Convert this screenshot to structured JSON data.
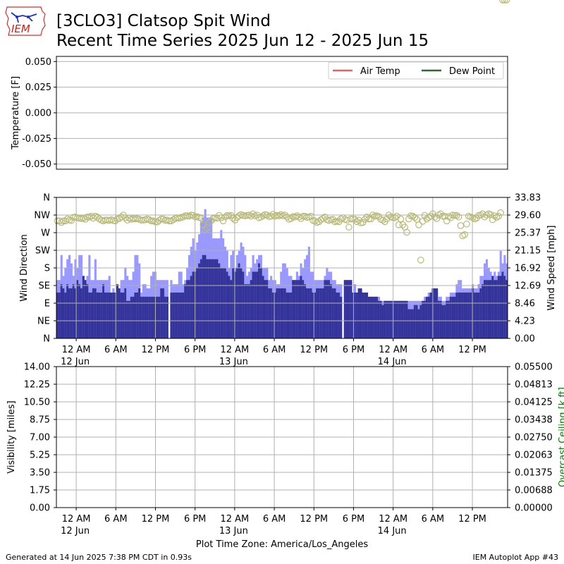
{
  "header": {
    "logo_text": "IEM",
    "title_line1": "[3CLO3] Clatsop Spit Wind",
    "title_line2": "Recent Time Series 2025 Jun 12 - 2025 Jun 15"
  },
  "footer": {
    "generated": "Generated at 14 Jun 2025 7:38 PM CDT in 0.93s",
    "app": "IEM Autoplot App #43",
    "timezone": "Plot Time Zone: America/Los_Angeles"
  },
  "colors": {
    "air_temp": "#dd6666",
    "dew_point": "#336633",
    "gust_bar": "#9999ff",
    "speed_bar": "#333399",
    "direction_marker": "#b9b97a",
    "ceiling_label": "#008000",
    "grid": "#b0b0b0"
  },
  "chart_data": [
    {
      "type": "line",
      "name": "temperature-panel",
      "ylabel": "Temperature [F]",
      "ylim": [
        -0.055,
        0.055
      ],
      "yticks": [
        "0.050",
        "0.025",
        "0.000",
        "-0.025",
        "-0.050"
      ],
      "ytick_values": [
        0.05,
        0.025,
        0.0,
        -0.025,
        -0.05
      ],
      "grid": true,
      "legend_position": "top-right",
      "series": [
        {
          "name": "Air Temp",
          "values": []
        },
        {
          "name": "Dew Point",
          "values": []
        }
      ]
    },
    {
      "type": "bar",
      "name": "wind-panel",
      "x_start": "2025-06-11T21:00",
      "x_end": "2025-06-14T17:20",
      "interval_minutes": 20,
      "ylabel_left": "Wind Direction",
      "ylabel_right": "Wind Speed [mph]",
      "direction_ticks": [
        "N",
        "NE",
        "E",
        "SE",
        "S",
        "SW",
        "W",
        "NW",
        "N"
      ],
      "direction_tick_values": [
        0,
        45,
        90,
        135,
        180,
        225,
        270,
        315,
        360
      ],
      "speed_ticks": [
        "0.00",
        "4.23",
        "8.46",
        "12.69",
        "16.92",
        "21.15",
        "25.37",
        "29.60",
        "33.83"
      ],
      "speed_tick_values": [
        0,
        4.23,
        8.46,
        12.69,
        16.92,
        21.15,
        25.37,
        29.6,
        33.83
      ],
      "speed_ylim": [
        0,
        33.83
      ],
      "direction_ylim": [
        0,
        360
      ],
      "xtick_labels": [
        {
          "time": "2025-06-12T00:00",
          "label": "12 AM",
          "sublabel": "12 Jun"
        },
        {
          "time": "2025-06-12T06:00",
          "label": "6 AM",
          "sublabel": ""
        },
        {
          "time": "2025-06-12T12:00",
          "label": "12 PM",
          "sublabel": ""
        },
        {
          "time": "2025-06-12T18:00",
          "label": "6 PM",
          "sublabel": ""
        },
        {
          "time": "2025-06-13T00:00",
          "label": "12 AM",
          "sublabel": "13 Jun"
        },
        {
          "time": "2025-06-13T06:00",
          "label": "6 AM",
          "sublabel": ""
        },
        {
          "time": "2025-06-13T12:00",
          "label": "12 PM",
          "sublabel": ""
        },
        {
          "time": "2025-06-13T18:00",
          "label": "6 PM",
          "sublabel": ""
        },
        {
          "time": "2025-06-14T00:00",
          "label": "12 AM",
          "sublabel": "14 Jun"
        },
        {
          "time": "2025-06-14T06:00",
          "label": "6 AM",
          "sublabel": ""
        },
        {
          "time": "2025-06-14T12:00",
          "label": "12 PM",
          "sublabel": ""
        }
      ],
      "speed_mph": [
        11,
        11,
        13,
        12,
        11,
        13,
        12,
        12,
        13,
        12,
        14,
        13,
        12,
        15,
        14,
        13,
        11,
        11,
        12,
        12,
        11,
        11,
        11,
        13,
        11,
        11,
        11,
        11,
        11,
        11,
        13,
        12,
        11,
        11,
        12,
        9,
        9,
        10,
        10,
        11,
        11,
        12,
        10,
        10,
        10,
        10,
        10,
        10,
        10,
        10,
        10,
        10,
        12,
        12,
        10,
        10,
        0,
        11,
        11,
        11,
        11,
        11,
        11,
        11,
        13,
        14,
        14,
        15,
        16,
        16,
        17,
        18,
        19,
        20,
        20,
        19,
        19,
        19,
        19,
        19,
        19,
        18,
        17,
        17,
        17,
        16,
        15,
        14,
        17,
        16,
        17,
        18,
        17,
        16,
        13,
        13,
        13,
        14,
        16,
        16,
        16,
        18,
        17,
        15,
        14,
        14,
        12,
        12,
        11,
        11,
        12,
        12,
        12,
        12,
        12,
        11,
        11,
        11,
        14,
        14,
        14,
        14,
        15,
        14,
        13,
        12,
        12,
        12,
        11,
        11,
        12,
        12,
        12,
        12,
        14,
        14,
        14,
        13,
        12,
        12,
        11,
        11,
        10,
        0,
        14,
        14,
        14,
        14,
        11,
        11,
        11,
        12,
        12,
        11,
        11,
        11,
        10,
        10,
        10,
        10,
        10,
        9,
        9,
        8,
        9,
        9,
        9,
        9,
        9,
        9,
        9,
        9,
        9,
        9,
        9,
        9,
        7,
        7,
        7,
        8,
        8,
        7,
        8,
        9,
        9,
        10,
        10,
        11,
        12,
        12,
        12,
        9,
        9,
        8,
        8,
        9,
        9,
        10,
        10,
        10,
        11,
        11,
        11,
        11,
        11,
        11,
        11,
        11,
        12,
        11,
        11,
        11,
        12,
        13,
        14,
        14,
        14,
        14,
        15,
        14,
        14,
        15,
        15,
        16,
        15,
        14
      ],
      "gust_mph": [
        14,
        14,
        20,
        15,
        17,
        19,
        20,
        18,
        15,
        19,
        17,
        20,
        20,
        14,
        14,
        15,
        20,
        14,
        14,
        19,
        14,
        14,
        14,
        14,
        14,
        14,
        15,
        11,
        12,
        11,
        11,
        12,
        14,
        14,
        17,
        15,
        14,
        14,
        16,
        20,
        20,
        18,
        11,
        13,
        13,
        12,
        12,
        15,
        16,
        16,
        14,
        14,
        14,
        14,
        14,
        14,
        0,
        14,
        13,
        13,
        13,
        16,
        16,
        13,
        14,
        17,
        20,
        22,
        24,
        21,
        23,
        25,
        28,
        29,
        31,
        29,
        29,
        29,
        24,
        24,
        24,
        24,
        26,
        24,
        22,
        21,
        17,
        20,
        21,
        17,
        20,
        21,
        23,
        22,
        20,
        15,
        16,
        17,
        20,
        18,
        19,
        20,
        20,
        17,
        17,
        17,
        14,
        15,
        14,
        14,
        13,
        13,
        16,
        18,
        18,
        17,
        15,
        15,
        14,
        14,
        16,
        15,
        18,
        17,
        19,
        20,
        22,
        16,
        16,
        14,
        14,
        14,
        14,
        14,
        15,
        17,
        16,
        16,
        14,
        14,
        13,
        13,
        13,
        0,
        14,
        14,
        14,
        14,
        11,
        13,
        11,
        12,
        10,
        10,
        11,
        10,
        10,
        10,
        10,
        10,
        10,
        10,
        9,
        9,
        9,
        9,
        9,
        9,
        9,
        9,
        9,
        9,
        9,
        9,
        9,
        9,
        9,
        9,
        9,
        9,
        9,
        9,
        9,
        9,
        10,
        10,
        11,
        11,
        11,
        11,
        11,
        10,
        10,
        9,
        9,
        10,
        10,
        11,
        11,
        11,
        13,
        14,
        14,
        12,
        12,
        12,
        12,
        12,
        13,
        12,
        12,
        13,
        15,
        15,
        18,
        19,
        17,
        16,
        15,
        16,
        15,
        16,
        21,
        18,
        20,
        18
      ],
      "direction_deg": [
        300,
        300,
        296,
        300,
        300,
        305,
        302,
        301,
        309,
        310,
        308,
        307,
        306,
        307,
        304,
        310,
        310,
        312,
        307,
        312,
        310,
        305,
        302,
        300,
        302,
        302,
        301,
        303,
        301,
        300,
        305,
        306,
        310,
        315,
        308,
        302,
        307,
        304,
        306,
        305,
        306,
        304,
        302,
        302,
        303,
        305,
        303,
        300,
        300,
        298,
        297,
        301,
        305,
        305,
        301,
        302,
        300,
        300,
        303,
        306,
        308,
        307,
        309,
        310,
        313,
        313,
        312,
        315,
        314,
        310,
        311,
        309,
        307,
        290,
        278,
        282,
        296,
        300,
        306,
        308,
        307,
        314,
        308,
        300,
        310,
        314,
        313,
        314,
        307,
        302,
        309,
        313,
        316,
        314,
        313,
        314,
        315,
        312,
        318,
        313,
        315,
        308,
        310,
        313,
        316,
        315,
        311,
        312,
        317,
        312,
        314,
        313,
        316,
        313,
        315,
        310,
        304,
        306,
        311,
        310,
        313,
        310,
        306,
        312,
        312,
        309,
        310,
        312,
        301,
        300,
        296,
        298,
        303,
        306,
        310,
        303,
        301,
        303,
        304,
        298,
        299,
        298,
        305,
        308,
        304,
        302,
        284,
        305,
        305,
        304,
        298,
        302,
        295,
        296,
        304,
        310,
        305,
        305,
        315,
        312,
        313,
        311,
        304,
        302,
        298,
        305,
        315,
        310,
        309,
        308,
        312,
        290,
        305,
        290,
        284,
        271,
        305,
        313,
        312,
        309,
        304,
        290,
        200,
        299,
        314,
        305,
        309,
        312,
        318,
        310,
        306,
        315,
        318,
        312,
        312,
        300,
        311,
        308,
        315,
        314,
        314,
        310,
        288,
        262,
        265,
        292,
        312,
        310,
        308,
        305,
        307,
        314,
        315,
        318,
        310,
        315,
        318,
        316,
        303,
        313,
        309,
        312,
        321
      ],
      "series": [
        {
          "name": "Gust",
          "values_key": "gust_mph"
        },
        {
          "name": "Speed",
          "values_key": "speed_mph"
        },
        {
          "name": "Direction",
          "values_key": "direction_deg"
        }
      ]
    },
    {
      "type": "line",
      "name": "visibility-panel",
      "ylabel_left": "Visibility [miles]",
      "ylabel_right": "Overcast Ceiling [k ft]",
      "ylim_left": [
        0,
        14
      ],
      "ylim_right": [
        0,
        0.055
      ],
      "yticks_left": [
        "14.00",
        "12.25",
        "10.50",
        "8.75",
        "7.00",
        "5.25",
        "3.50",
        "1.75",
        "0.00"
      ],
      "yticks_left_values": [
        14,
        12.25,
        10.5,
        8.75,
        7,
        5.25,
        3.5,
        1.75,
        0
      ],
      "yticks_right": [
        "0.05500",
        "0.04813",
        "0.04125",
        "0.03438",
        "0.02750",
        "0.02063",
        "0.01375",
        "0.00688",
        "0.00000"
      ],
      "yticks_right_values": [
        0.055,
        0.04813,
        0.04125,
        0.03438,
        0.0275,
        0.02063,
        0.01375,
        0.00688,
        0
      ],
      "grid": true,
      "series": [
        {
          "name": "Visibility",
          "values": []
        },
        {
          "name": "Overcast Ceiling",
          "values": []
        }
      ]
    }
  ]
}
